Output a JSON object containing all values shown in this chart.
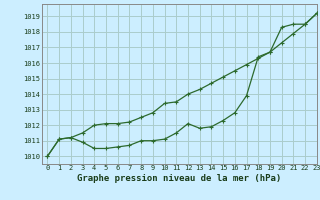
{
  "title": "Graphe pression niveau de la mer (hPa)",
  "bg_color": "#cceeff",
  "grid_color": "#aacccc",
  "line_color": "#2d6a2d",
  "spine_color": "#888888",
  "xlim": [
    -0.5,
    23
  ],
  "ylim": [
    1009.5,
    1019.8
  ],
  "yticks": [
    1010,
    1011,
    1012,
    1013,
    1014,
    1015,
    1016,
    1017,
    1018,
    1019
  ],
  "xticks": [
    0,
    1,
    2,
    3,
    4,
    5,
    6,
    7,
    8,
    9,
    10,
    11,
    12,
    13,
    14,
    15,
    16,
    17,
    18,
    19,
    20,
    21,
    22,
    23
  ],
  "series1_x": [
    0,
    1,
    2,
    3,
    4,
    5,
    6,
    7,
    8,
    9,
    10,
    11,
    12,
    13,
    14,
    15,
    16,
    17,
    18,
    19,
    20,
    21,
    22,
    23
  ],
  "series1_y": [
    1010.0,
    1011.1,
    1011.2,
    1010.9,
    1010.5,
    1010.5,
    1010.6,
    1010.7,
    1011.0,
    1011.0,
    1011.1,
    1011.5,
    1012.1,
    1011.8,
    1011.9,
    1012.3,
    1012.8,
    1013.9,
    1016.4,
    1016.7,
    1018.3,
    1018.5,
    1018.5,
    1019.2
  ],
  "series2_x": [
    0,
    1,
    2,
    3,
    4,
    5,
    6,
    7,
    8,
    9,
    10,
    11,
    12,
    13,
    14,
    15,
    16,
    17,
    18,
    19,
    20,
    21,
    22,
    23
  ],
  "series2_y": [
    1010.0,
    1011.1,
    1011.2,
    1011.5,
    1012.0,
    1012.1,
    1012.1,
    1012.2,
    1012.5,
    1012.8,
    1013.4,
    1013.5,
    1014.0,
    1014.3,
    1014.7,
    1015.1,
    1015.5,
    1015.9,
    1016.3,
    1016.7,
    1017.3,
    1017.9,
    1018.5,
    1019.2
  ],
  "title_fontsize": 6.5,
  "tick_fontsize": 5.0
}
